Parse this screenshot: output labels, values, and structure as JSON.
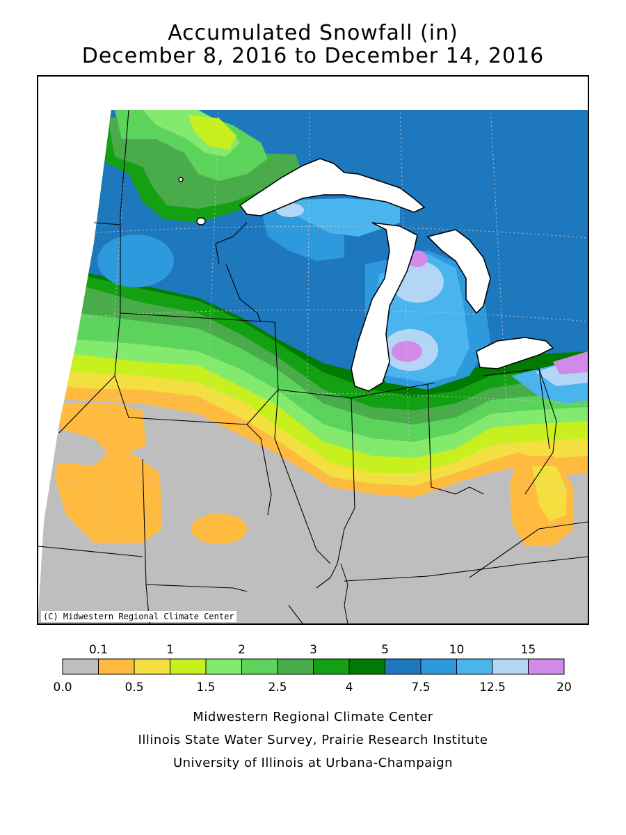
{
  "title": {
    "line1": "Accumulated Snowfall (in)",
    "line2": "December 8, 2016 to December 14, 2016"
  },
  "map": {
    "copyright": "(C) Midwestern Regional Climate Center"
  },
  "legend": {
    "bins": [
      {
        "color": "#bebebe"
      },
      {
        "color": "#ffbb40"
      },
      {
        "color": "#f3e040"
      },
      {
        "color": "#c8f01e"
      },
      {
        "color": "#84ea6e"
      },
      {
        "color": "#5cd45c"
      },
      {
        "color": "#4aab4a"
      },
      {
        "color": "#13a013"
      },
      {
        "color": "#007a00"
      },
      {
        "color": "#1e78be"
      },
      {
        "color": "#2e9ade"
      },
      {
        "color": "#4ab4ee"
      },
      {
        "color": "#b4d6f6"
      },
      {
        "color": "#d28aea"
      }
    ],
    "top_labels": [
      "0.1",
      "1",
      "2",
      "3",
      "5",
      "10",
      "15"
    ],
    "bottom_labels": [
      "0.0",
      "0.5",
      "1.5",
      "2.5",
      "4",
      "7.5",
      "12.5",
      "20"
    ]
  },
  "footer": {
    "line1": "Midwestern Regional Climate Center",
    "line2": "Illinois State Water Survey, Prairie Research Institute",
    "line3": "University of Illinois at Urbana-Champaign"
  },
  "colors": {
    "none": "#bebebe",
    "orange": "#ffbb40",
    "yellow": "#f3e040",
    "lime": "#c8f01e",
    "light_green": "#84ea6e",
    "green": "#5cd45c",
    "med_green": "#4aab4a",
    "darker_green": "#13a013",
    "dark_green": "#007a00",
    "blue": "#1e78be",
    "mid_blue": "#2e9ade",
    "light_blue": "#4ab4ee",
    "pale_blue": "#b4d6f6",
    "purple": "#d28aea"
  }
}
